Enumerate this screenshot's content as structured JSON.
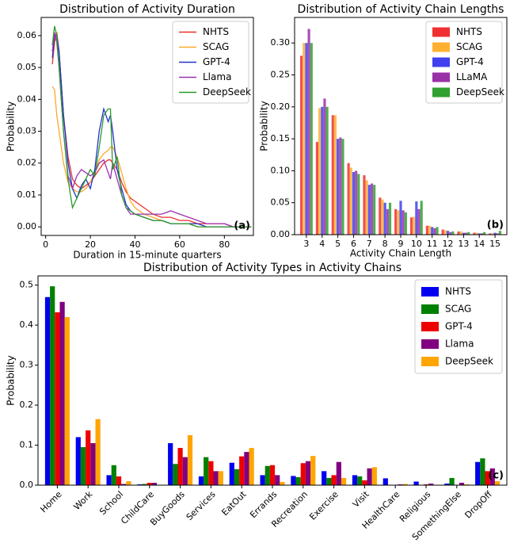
{
  "chart_data": [
    {
      "type": "line",
      "title": "Distribution of Activity Duration",
      "xlabel": "Duration in 15-minute quarters",
      "ylabel": "Probability",
      "annotation": "(a)",
      "legend": "upper right",
      "x": [
        3,
        4,
        5,
        6,
        7,
        8,
        10,
        12,
        14,
        16,
        18,
        20,
        22,
        24,
        26,
        28,
        29,
        30,
        32,
        34,
        36,
        38,
        40,
        44,
        48,
        52,
        56,
        60,
        64,
        68,
        72,
        76,
        80,
        84,
        88,
        92
      ],
      "xlim": [
        -2,
        93
      ],
      "xticks": [
        0,
        20,
        40,
        60,
        80
      ],
      "ylim": [
        -0.0027,
        0.0657
      ],
      "yticks": [
        {
          "value": 0,
          "label": "0.00"
        },
        {
          "value": 0.01,
          "label": "0.01"
        },
        {
          "value": 0.02,
          "label": "0.02"
        },
        {
          "value": 0.03,
          "label": "0.03"
        },
        {
          "value": 0.04,
          "label": "0.04"
        },
        {
          "value": 0.05,
          "label": "0.05"
        },
        {
          "value": 0.06,
          "label": "0.06"
        }
      ],
      "series": [
        {
          "name": "NHTS",
          "color": "#e8302a",
          "values": [
            0.051,
            0.058,
            0.061,
            0.055,
            0.045,
            0.035,
            0.022,
            0.015,
            0.013,
            0.012,
            0.013,
            0.014,
            0.016,
            0.018,
            0.02,
            0.021,
            0.021,
            0.02,
            0.018,
            0.014,
            0.011,
            0.009,
            0.008,
            0.006,
            0.004,
            0.003,
            0.003,
            0.002,
            0.002,
            0.001,
            0.001,
            0.001,
            0.001,
            0.0,
            0.0,
            0.0
          ]
        },
        {
          "name": "SCAG",
          "color": "#ffa82a",
          "values": [
            0.044,
            0.043,
            0.035,
            0.03,
            0.025,
            0.02,
            0.014,
            0.012,
            0.011,
            0.011,
            0.012,
            0.014,
            0.017,
            0.021,
            0.023,
            0.024,
            0.025,
            0.025,
            0.022,
            0.017,
            0.012,
            0.008,
            0.006,
            0.004,
            0.003,
            0.002,
            0.001,
            0.001,
            0.001,
            0.0,
            0.0,
            0.0,
            0.0,
            0.0,
            0.0,
            0.0
          ]
        },
        {
          "name": "GPT-4",
          "color": "#2233cc",
          "values": [
            0.053,
            0.06,
            0.06,
            0.055,
            0.045,
            0.035,
            0.02,
            0.012,
            0.009,
            0.013,
            0.015,
            0.012,
            0.018,
            0.03,
            0.037,
            0.033,
            0.035,
            0.03,
            0.018,
            0.012,
            0.007,
            0.005,
            0.004,
            0.003,
            0.002,
            0.002,
            0.001,
            0.001,
            0.001,
            0.001,
            0.0,
            0.0,
            0.0,
            0.0,
            0.0,
            0.0
          ]
        },
        {
          "name": "Llama",
          "color": "#9b30b0",
          "values": [
            0.055,
            0.061,
            0.058,
            0.05,
            0.04,
            0.03,
            0.016,
            0.012,
            0.016,
            0.018,
            0.017,
            0.016,
            0.017,
            0.02,
            0.021,
            0.017,
            0.015,
            0.02,
            0.015,
            0.01,
            0.006,
            0.004,
            0.004,
            0.004,
            0.004,
            0.004,
            0.005,
            0.004,
            0.003,
            0.002,
            0.001,
            0.001,
            0.001,
            0.0,
            0.0,
            0.0
          ]
        },
        {
          "name": "DeepSeek",
          "color": "#2a9a2a",
          "values": [
            0.057,
            0.063,
            0.06,
            0.05,
            0.04,
            0.03,
            0.015,
            0.006,
            0.009,
            0.012,
            0.015,
            0.018,
            0.016,
            0.025,
            0.035,
            0.037,
            0.037,
            0.018,
            0.022,
            0.01,
            0.006,
            0.005,
            0.004,
            0.003,
            0.002,
            0.002,
            0.001,
            0.001,
            0.001,
            0.0,
            0.0,
            0.0,
            0.0,
            0.0,
            0.0,
            0.0
          ]
        }
      ]
    },
    {
      "type": "bar",
      "title": "Distribution of Activity Chain Lengths",
      "xlabel": "Activity Chain Length",
      "ylabel": "Probability",
      "annotation": "(b)",
      "legend": "upper right",
      "categories": [
        "3",
        "4",
        "5",
        "6",
        "7",
        "8",
        "9",
        "10",
        "11",
        "12",
        "13",
        "14",
        "15"
      ],
      "ylim": [
        0,
        0.34
      ],
      "yticks": [
        {
          "value": 0,
          "label": "0.00"
        },
        {
          "value": 0.05,
          "label": "0.05"
        },
        {
          "value": 0.1,
          "label": "0.10"
        },
        {
          "value": 0.15,
          "label": "0.15"
        },
        {
          "value": 0.2,
          "label": "0.20"
        },
        {
          "value": 0.25,
          "label": "0.25"
        },
        {
          "value": 0.3,
          "label": "0.30"
        }
      ],
      "series": [
        {
          "name": "NHTS",
          "color": "#f03030",
          "values": [
            0.28,
            0.145,
            0.187,
            0.112,
            0.093,
            0.058,
            0.04,
            0.027,
            0.014,
            0.008,
            0.005,
            0.003,
            0.002
          ]
        },
        {
          "name": "SCAG",
          "color": "#ffb030",
          "values": [
            0.3,
            0.198,
            0.187,
            0.105,
            0.085,
            0.055,
            0.038,
            0.028,
            0.014,
            0.007,
            0.005,
            0.003,
            0.002
          ]
        },
        {
          "name": "GPT-4",
          "color": "#4040f0",
          "values": [
            0.3,
            0.2,
            0.15,
            0.098,
            0.078,
            0.05,
            0.053,
            0.052,
            0.012,
            0.006,
            0.003,
            0.002,
            0.003
          ]
        },
        {
          "name": "LLaMA",
          "color": "#9a30a8",
          "values": [
            0.322,
            0.213,
            0.152,
            0.1,
            0.08,
            0.04,
            0.038,
            0.04,
            0.01,
            0.004,
            0.003,
            0.002,
            0.002
          ]
        },
        {
          "name": "DeepSeek",
          "color": "#30a030",
          "values": [
            0.3,
            0.2,
            0.15,
            0.095,
            0.078,
            0.05,
            0.035,
            0.053,
            0.012,
            0.005,
            0.004,
            0.004,
            0.006
          ]
        }
      ]
    },
    {
      "type": "bar",
      "title": "Distribution of Activity Types in Activity Chains",
      "ylabel": "Probability",
      "annotation": "(c)",
      "legend": "upper right",
      "rotate_labels": true,
      "categories": [
        "Home",
        "Work",
        "School",
        "ChildCare",
        "BuyGoods",
        "Services",
        "EatOut",
        "Errands",
        "Recreation",
        "Exercise",
        "Visit",
        "HealthCare",
        "Religious",
        "SomethingElse",
        "DropOff"
      ],
      "ylim": [
        0,
        0.523
      ],
      "yticks": [
        {
          "value": 0,
          "label": "0.0"
        },
        {
          "value": 0.1,
          "label": "0.1"
        },
        {
          "value": 0.2,
          "label": "0.2"
        },
        {
          "value": 0.3,
          "label": "0.3"
        },
        {
          "value": 0.4,
          "label": "0.4"
        },
        {
          "value": 0.5,
          "label": "0.5"
        }
      ],
      "series": [
        {
          "name": "NHTS",
          "color": "#0000ee",
          "values": [
            0.47,
            0.12,
            0.025,
            0.002,
            0.105,
            0.022,
            0.056,
            0.025,
            0.023,
            0.035,
            0.025,
            0.017,
            0.009,
            0.004,
            0.058
          ]
        },
        {
          "name": "SCAG",
          "color": "#008000",
          "values": [
            0.497,
            0.095,
            0.05,
            0.003,
            0.053,
            0.07,
            0.04,
            0.048,
            0.02,
            0.018,
            0.022,
            0.0,
            0.0,
            0.018,
            0.067
          ]
        },
        {
          "name": "GPT-4",
          "color": "#ee0000",
          "values": [
            0.432,
            0.137,
            0.022,
            0.006,
            0.093,
            0.06,
            0.072,
            0.05,
            0.055,
            0.025,
            0.012,
            0.001,
            0.002,
            0.001,
            0.035
          ]
        },
        {
          "name": "Llama",
          "color": "#800080",
          "values": [
            0.458,
            0.105,
            0.003,
            0.006,
            0.07,
            0.035,
            0.083,
            0.025,
            0.06,
            0.058,
            0.042,
            0.002,
            0.004,
            0.006,
            0.042
          ]
        },
        {
          "name": "DeepSeek",
          "color": "#ffa500",
          "values": [
            0.42,
            0.165,
            0.01,
            0.001,
            0.125,
            0.035,
            0.093,
            0.008,
            0.073,
            0.018,
            0.045,
            0.003,
            0.001,
            0.002,
            0.01
          ]
        }
      ]
    }
  ]
}
